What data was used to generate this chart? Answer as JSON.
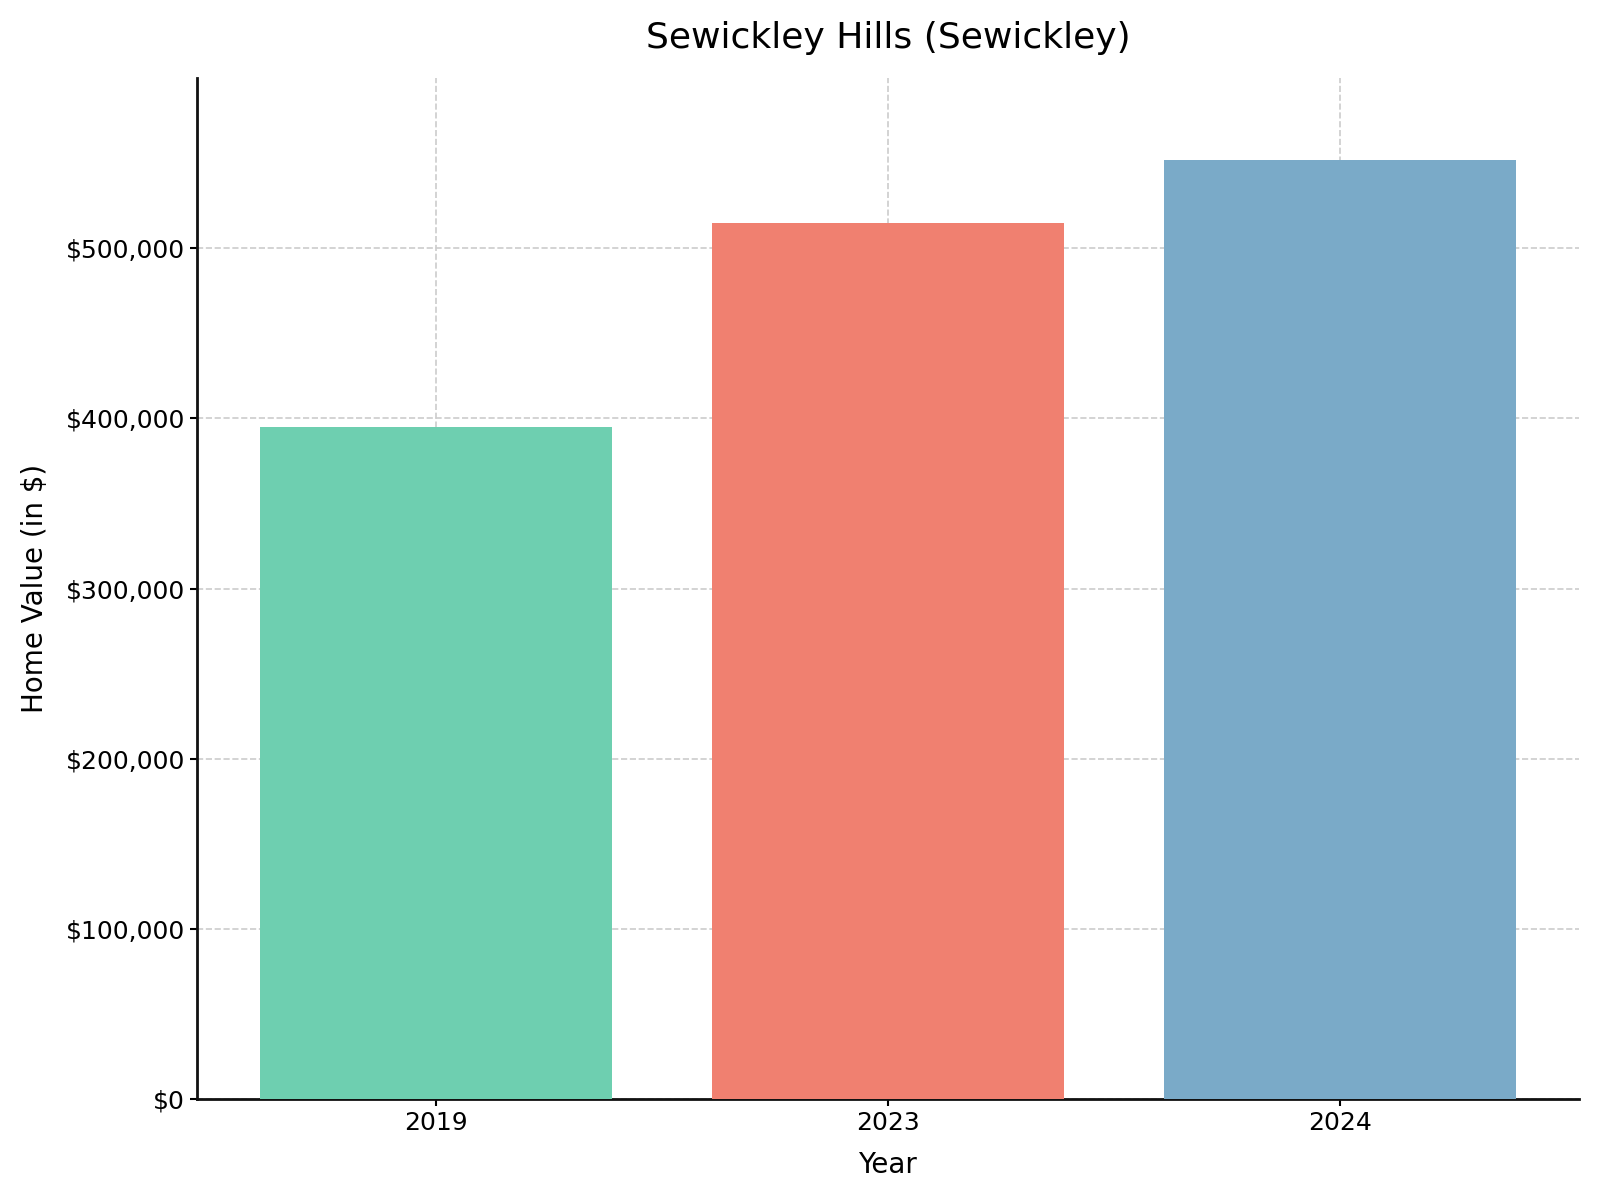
{
  "title": "Sewickley Hills (Sewickley)",
  "xlabel": "Year",
  "ylabel": "Home Value (in $)",
  "categories": [
    "2019",
    "2023",
    "2024"
  ],
  "values": [
    395000,
    515000,
    552000
  ],
  "bar_colors": [
    "#6ecfb0",
    "#f08070",
    "#7aaac8"
  ],
  "ylim": [
    0,
    600000
  ],
  "yticks": [
    0,
    100000,
    200000,
    300000,
    400000,
    500000
  ],
  "title_fontsize": 26,
  "axis_label_fontsize": 20,
  "tick_fontsize": 18,
  "background_color": "#ffffff",
  "grid_color": "#cccccc",
  "bar_width": 0.78
}
